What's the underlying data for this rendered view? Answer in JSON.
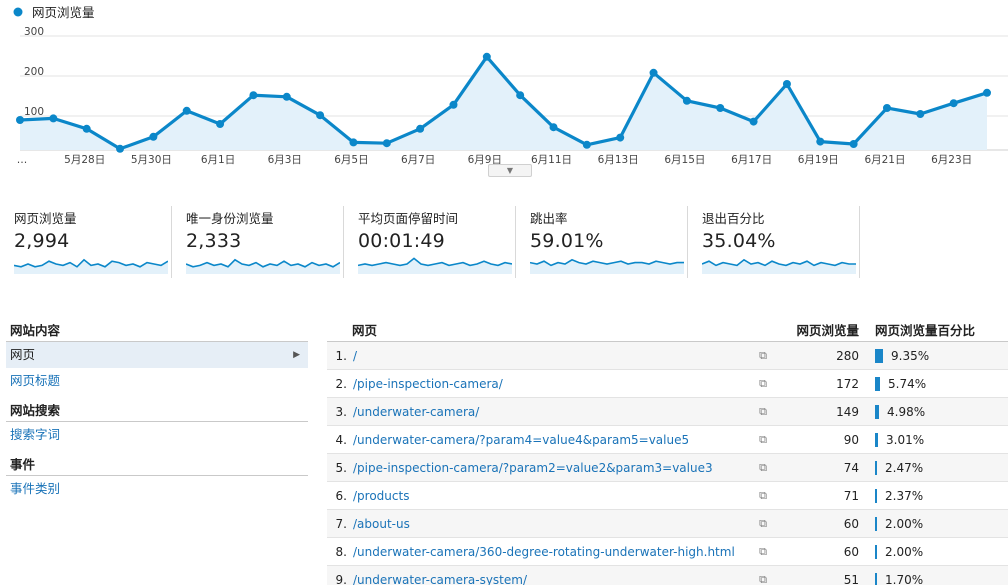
{
  "legend": {
    "label": "网页浏览量",
    "color": "#0b87c9"
  },
  "chart_data": {
    "type": "area",
    "series": [
      {
        "name": "网页浏览量",
        "values": [
          90,
          94,
          68,
          18,
          48,
          113,
          80,
          152,
          148,
          102,
          34,
          32,
          68,
          128,
          248,
          152,
          72,
          28,
          46,
          208,
          138,
          120,
          86,
          180,
          36,
          30,
          120,
          105,
          132,
          158
        ]
      }
    ],
    "y_ticks": [
      "300",
      "200",
      "100"
    ],
    "ylim": [
      0,
      300
    ],
    "x_tick_labels": [
      "…",
      "5月28日",
      "5月30日",
      "6月1日",
      "6月3日",
      "6月5日",
      "6月7日",
      "6月9日",
      "6月11日",
      "6月13日",
      "6月15日",
      "6月17日",
      "6月19日",
      "6月21日",
      "6月23日"
    ],
    "grid": true,
    "color": "#0b87c9"
  },
  "metrics": [
    {
      "label": "网页浏览量",
      "value": "2,994",
      "spark": [
        0.4,
        0.3,
        0.5,
        0.3,
        0.4,
        0.7,
        0.5,
        0.4,
        0.6,
        0.3,
        0.8,
        0.4,
        0.5,
        0.3,
        0.7,
        0.6,
        0.4,
        0.5,
        0.3,
        0.6,
        0.5,
        0.4,
        0.7
      ]
    },
    {
      "label": "唯一身份浏览量",
      "value": "2,333",
      "spark": [
        0.5,
        0.3,
        0.4,
        0.6,
        0.4,
        0.5,
        0.3,
        0.8,
        0.5,
        0.4,
        0.6,
        0.3,
        0.5,
        0.4,
        0.7,
        0.4,
        0.5,
        0.3,
        0.6,
        0.4,
        0.5,
        0.3,
        0.6
      ]
    },
    {
      "label": "平均页面停留时间",
      "value": "00:01:49",
      "spark": [
        0.4,
        0.5,
        0.4,
        0.5,
        0.6,
        0.5,
        0.4,
        0.5,
        0.9,
        0.5,
        0.4,
        0.5,
        0.6,
        0.4,
        0.5,
        0.6,
        0.4,
        0.5,
        0.7,
        0.5,
        0.4,
        0.6,
        0.5
      ]
    },
    {
      "label": "跳出率",
      "value": "59.01%",
      "spark": [
        0.6,
        0.5,
        0.7,
        0.4,
        0.6,
        0.5,
        0.8,
        0.6,
        0.5,
        0.7,
        0.6,
        0.5,
        0.6,
        0.7,
        0.5,
        0.6,
        0.6,
        0.5,
        0.7,
        0.6,
        0.5,
        0.6,
        0.6
      ]
    },
    {
      "label": "退出百分比",
      "value": "35.04%",
      "spark": [
        0.5,
        0.7,
        0.4,
        0.6,
        0.5,
        0.4,
        0.8,
        0.5,
        0.6,
        0.4,
        0.7,
        0.5,
        0.4,
        0.6,
        0.5,
        0.7,
        0.4,
        0.6,
        0.5,
        0.4,
        0.6,
        0.5,
        0.5
      ]
    }
  ],
  "side_nav": {
    "sections": [
      {
        "heading": "网站内容",
        "items": [
          {
            "label": "网页",
            "active": true
          },
          {
            "label": "网页标题",
            "active": false
          }
        ]
      },
      {
        "heading": "网站搜索",
        "items": [
          {
            "label": "搜索字词",
            "active": false
          }
        ]
      },
      {
        "heading": "事件",
        "items": [
          {
            "label": "事件类别",
            "active": false
          }
        ]
      }
    ]
  },
  "table": {
    "columns": {
      "page": "网页",
      "views": "网页浏览量",
      "pct": "网页浏览量百分比"
    },
    "rows": [
      {
        "idx": "1.",
        "page": "/",
        "views": "280",
        "pct": "9.35%",
        "frac": 0.0935
      },
      {
        "idx": "2.",
        "page": "/pipe-inspection-camera/",
        "views": "172",
        "pct": "5.74%",
        "frac": 0.0574
      },
      {
        "idx": "3.",
        "page": "/underwater-camera/",
        "views": "149",
        "pct": "4.98%",
        "frac": 0.0498
      },
      {
        "idx": "4.",
        "page": "/underwater-camera/?param4=value4&param5=value5",
        "views": "90",
        "pct": "3.01%",
        "frac": 0.0301
      },
      {
        "idx": "5.",
        "page": "/pipe-inspection-camera/?param2=value2&param3=value3",
        "views": "74",
        "pct": "2.47%",
        "frac": 0.0247
      },
      {
        "idx": "6.",
        "page": "/products",
        "views": "71",
        "pct": "2.37%",
        "frac": 0.0237
      },
      {
        "idx": "7.",
        "page": "/about-us",
        "views": "60",
        "pct": "2.00%",
        "frac": 0.02
      },
      {
        "idx": "8.",
        "page": "/underwater-camera/360-degree-rotating-underwater-high.html",
        "views": "60",
        "pct": "2.00%",
        "frac": 0.02
      },
      {
        "idx": "9.",
        "page": "/underwater-camera-system/",
        "views": "51",
        "pct": "1.70%",
        "frac": 0.017
      }
    ]
  }
}
